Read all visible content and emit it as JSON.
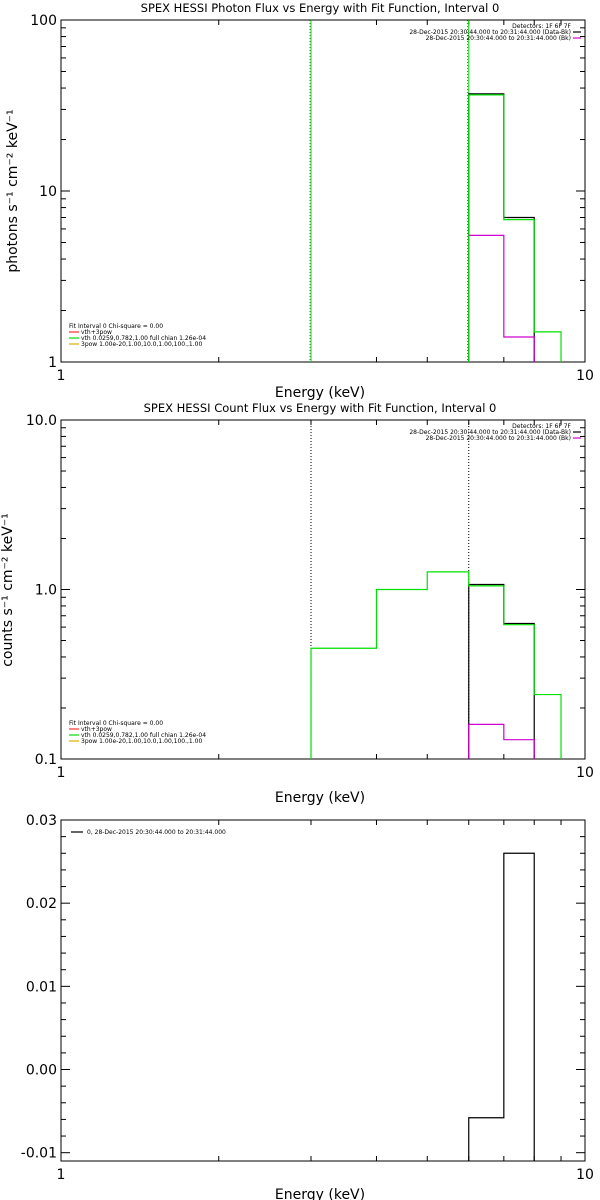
{
  "colors": {
    "background": "#ffffff",
    "axes": "#000000",
    "data": "#000000",
    "background_model": "#d000d0",
    "fit": "#00e000",
    "vth": "#ff3030",
    "power_law": "#e0b000"
  },
  "chart_data": [
    {
      "type": "line",
      "title": "SPEX HESSI Photon Flux vs Energy with Fit Function, Interval 0",
      "xlabel": "Energy (keV)",
      "ylabel": "photons s⁻¹ cm⁻² keV⁻¹",
      "xscale": "log",
      "yscale": "log",
      "xlim": [
        1,
        10
      ],
      "ylim": [
        1,
        100
      ],
      "xticklabels": [
        "1",
        "10"
      ],
      "yticklabels": [
        "1",
        "10",
        "100"
      ],
      "grid": false,
      "detector_note": "Detectors: 1F 6F 7F",
      "time_legend": [
        {
          "text": "28-Dec-2015 20:30:44.000 to 20:31:44.000 (Data-Bk)",
          "color": "#000000"
        },
        {
          "text": "28-Dec-2015 20:30:44.000 to 20:31:44.000 (Bk)",
          "color": "#d000d0"
        }
      ],
      "fit_legend": [
        {
          "text": "Fit Interval 0   Chi-square = 0.00",
          "color": "#000000",
          "line": false
        },
        {
          "text": "vth+3pow",
          "color": "#ff3030",
          "line": true
        },
        {
          "text": "vth 0.0259,0.782,1.00  full chian 1.26e-04",
          "color": "#00e000",
          "line": true
        },
        {
          "text": "3pow 1.00e-20,1.00,10.0,1.00,100.,1.00",
          "color": "#e0b000",
          "line": true
        }
      ],
      "fit_range_keV": [
        3,
        6
      ],
      "fit_range_style": "solid",
      "series": [
        {
          "name": "Data-Bk",
          "color": "#000000",
          "bins": [
            [
              6,
              7
            ],
            [
              7,
              8
            ],
            [
              8,
              9
            ]
          ],
          "values": [
            37,
            7,
            null
          ]
        },
        {
          "name": "Bk",
          "color": "#d000d0",
          "bins": [
            [
              6,
              7
            ],
            [
              7,
              8
            ]
          ],
          "values": [
            5.5,
            1.4
          ]
        },
        {
          "name": "vth+3pow",
          "color": "#00e000",
          "bins": [
            [
              6,
              7
            ],
            [
              7,
              8
            ],
            [
              8,
              9
            ]
          ],
          "values": [
            36.5,
            6.8,
            1.5
          ]
        }
      ]
    },
    {
      "type": "line",
      "title": "SPEX HESSI Count Flux vs Energy with Fit Function, Interval 0",
      "xlabel": "Energy (keV)",
      "ylabel": "counts s⁻¹ cm⁻² keV⁻¹",
      "xscale": "log",
      "yscale": "log",
      "xlim": [
        1,
        10
      ],
      "ylim": [
        0.1,
        10
      ],
      "xticklabels": [
        "1",
        "10"
      ],
      "yticklabels": [
        "0.1",
        "1.0",
        "10.0"
      ],
      "grid": false,
      "detector_note": "Detectors: 1F 6F 7F",
      "time_legend": [
        {
          "text": "28-Dec-2015 20:30:44.000 to 20:31:44.000 (Data-Bk)",
          "color": "#000000"
        },
        {
          "text": "28-Dec-2015 20:30:44.000 to 20:31:44.000 (Bk)",
          "color": "#d000d0"
        }
      ],
      "fit_legend": [
        {
          "text": "Fit Interval 0   Chi-square = 0.00",
          "color": "#000000",
          "line": false
        },
        {
          "text": "vth+3pow",
          "color": "#ff3030",
          "line": true
        },
        {
          "text": "vth 0.0259,0.782,1.00  full chian 1.26e-04",
          "color": "#00e000",
          "line": true
        },
        {
          "text": "3pow 1.00e-20,1.00,10.0,1.00,100.,1.00",
          "color": "#e0b000",
          "line": true
        }
      ],
      "fit_range_keV": [
        3,
        6
      ],
      "fit_range_style": "dotted",
      "series": [
        {
          "name": "Data-Bk",
          "color": "#000000",
          "bins": [
            [
              6,
              7
            ],
            [
              7,
              8
            ]
          ],
          "values": [
            1.07,
            0.63
          ]
        },
        {
          "name": "Bk",
          "color": "#d000d0",
          "bins": [
            [
              6,
              7
            ],
            [
              7,
              8
            ]
          ],
          "values": [
            0.16,
            0.13
          ]
        },
        {
          "name": "vth+3pow",
          "color": "#00e000",
          "bins": [
            [
              3,
              4
            ],
            [
              4,
              5
            ],
            [
              5,
              6
            ],
            [
              6,
              7
            ],
            [
              7,
              8
            ],
            [
              8,
              9
            ]
          ],
          "values": [
            0.45,
            1.0,
            1.27,
            1.05,
            0.62,
            0.24
          ]
        }
      ]
    },
    {
      "type": "line",
      "title": "",
      "xlabel": "Energy (keV)",
      "ylabel": "",
      "xscale": "log",
      "yscale": "linear",
      "xlim": [
        1,
        10
      ],
      "ylim": [
        -0.011,
        0.03
      ],
      "xticklabels": [
        "1",
        "10"
      ],
      "yticks": [
        -0.01,
        0.0,
        0.01,
        0.02,
        0.03
      ],
      "yticklabels": [
        "-0.01",
        "0.00",
        "0.01",
        "0.02",
        "0.03"
      ],
      "grid": false,
      "time_legend": [
        {
          "text": "0, 28-Dec-2015 20:30:44.000 to 20:31:44.000",
          "color": "#000000"
        }
      ],
      "series": [
        {
          "name": "",
          "color": "#000000",
          "bins": [
            [
              6,
              7
            ],
            [
              7,
              8
            ]
          ],
          "values": [
            -0.0058,
            0.026
          ]
        }
      ]
    }
  ]
}
